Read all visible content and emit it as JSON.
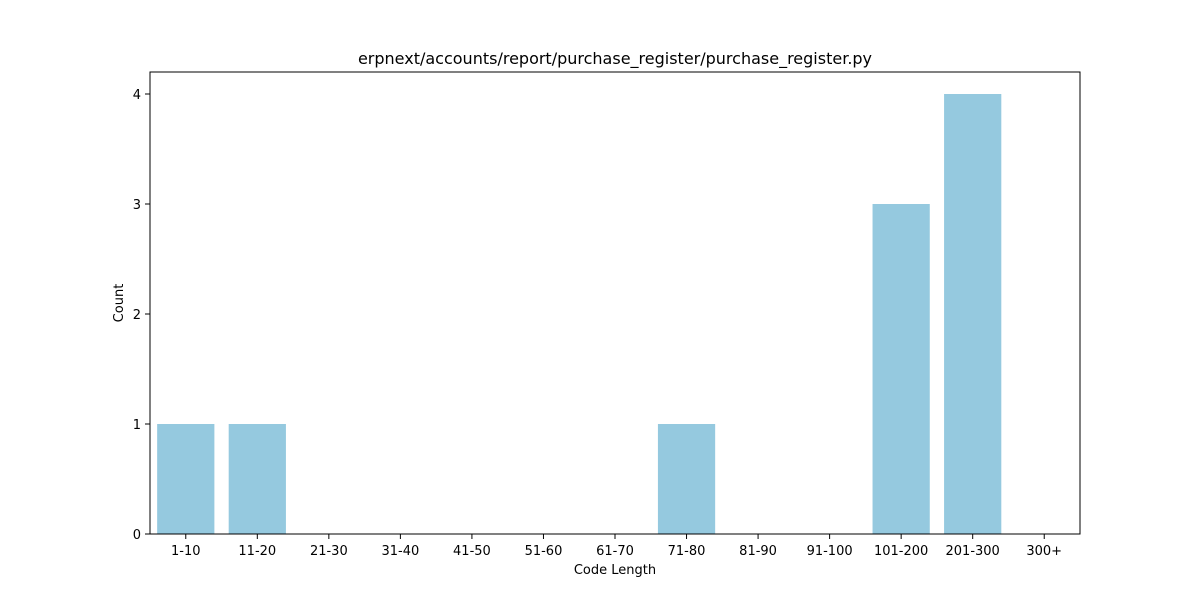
{
  "chart_data": {
    "type": "bar",
    "title": "erpnext/accounts/report/purchase_register/purchase_register.py",
    "xlabel": "Code Length",
    "ylabel": "Count",
    "categories": [
      "1-10",
      "11-20",
      "21-30",
      "31-40",
      "41-50",
      "51-60",
      "61-70",
      "71-80",
      "81-90",
      "91-100",
      "101-200",
      "201-300",
      "300+"
    ],
    "values": [
      1,
      1,
      0,
      0,
      0,
      0,
      0,
      1,
      0,
      0,
      3,
      4,
      0
    ],
    "ylim": [
      0,
      4.2
    ],
    "yticks": [
      "0",
      "1",
      "2",
      "3",
      "4"
    ],
    "grid": false,
    "legend": "none",
    "colors": {
      "bar": "#95c9df",
      "axes": "#000000",
      "background": "#ffffff"
    }
  }
}
